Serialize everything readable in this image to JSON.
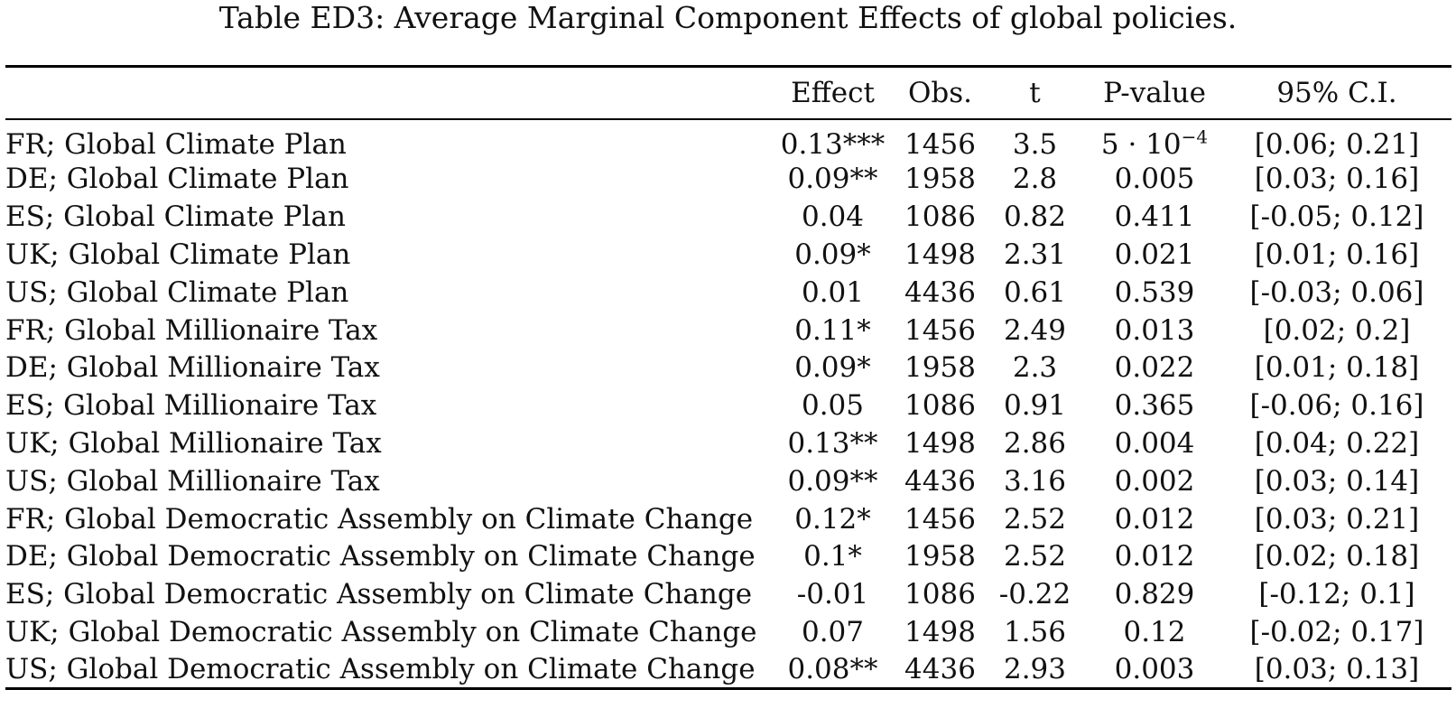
{
  "caption": "Table ED3: Average Marginal Component Effects of global policies.",
  "columns": {
    "label": "",
    "effect": "Effect",
    "obs": "Obs.",
    "t": "t",
    "pvalue": "P-value",
    "ci": "95% C.I."
  },
  "rows": [
    {
      "label": "FR; Global Climate Plan",
      "effect": "0.13***",
      "obs": "1456",
      "t": "3.5",
      "pvalue_base": "5 · 10",
      "pvalue_exp": "−4",
      "ci": "[0.06; 0.21]"
    },
    {
      "label": "DE; Global Climate Plan",
      "effect": "0.09**",
      "obs": "1958",
      "t": "2.8",
      "pvalue": "0.005",
      "ci": "[0.03; 0.16]"
    },
    {
      "label": "ES; Global Climate Plan",
      "effect": "0.04",
      "obs": "1086",
      "t": "0.82",
      "pvalue": "0.411",
      "ci": "[-0.05; 0.12]"
    },
    {
      "label": "UK; Global Climate Plan",
      "effect": "0.09*",
      "obs": "1498",
      "t": "2.31",
      "pvalue": "0.021",
      "ci": "[0.01; 0.16]"
    },
    {
      "label": "US; Global Climate Plan",
      "effect": "0.01",
      "obs": "4436",
      "t": "0.61",
      "pvalue": "0.539",
      "ci": "[-0.03; 0.06]"
    },
    {
      "label": "FR; Global Millionaire Tax",
      "effect": "0.11*",
      "obs": "1456",
      "t": "2.49",
      "pvalue": "0.013",
      "ci": "[0.02; 0.2]"
    },
    {
      "label": "DE; Global Millionaire Tax",
      "effect": "0.09*",
      "obs": "1958",
      "t": "2.3",
      "pvalue": "0.022",
      "ci": "[0.01; 0.18]"
    },
    {
      "label": "ES; Global Millionaire Tax",
      "effect": "0.05",
      "obs": "1086",
      "t": "0.91",
      "pvalue": "0.365",
      "ci": "[-0.06; 0.16]"
    },
    {
      "label": "UK; Global Millionaire Tax",
      "effect": "0.13**",
      "obs": "1498",
      "t": "2.86",
      "pvalue": "0.004",
      "ci": "[0.04; 0.22]"
    },
    {
      "label": "US; Global Millionaire Tax",
      "effect": "0.09**",
      "obs": "4436",
      "t": "3.16",
      "pvalue": "0.002",
      "ci": "[0.03; 0.14]"
    },
    {
      "label": "FR; Global Democratic Assembly on Climate Change",
      "effect": "0.12*",
      "obs": "1456",
      "t": "2.52",
      "pvalue": "0.012",
      "ci": "[0.03; 0.21]"
    },
    {
      "label": "DE; Global Democratic Assembly on Climate Change",
      "effect": "0.1*",
      "obs": "1958",
      "t": "2.52",
      "pvalue": "0.012",
      "ci": "[0.02; 0.18]"
    },
    {
      "label": "ES; Global Democratic Assembly on Climate Change",
      "effect": "-0.01",
      "obs": "1086",
      "t": "-0.22",
      "pvalue": "0.829",
      "ci": "[-0.12; 0.1]"
    },
    {
      "label": "UK; Global Democratic Assembly on Climate Change",
      "effect": "0.07",
      "obs": "1498",
      "t": "1.56",
      "pvalue": "0.12",
      "ci": "[-0.02; 0.17]"
    },
    {
      "label": "US; Global Democratic Assembly on Climate Change",
      "effect": "0.08**",
      "obs": "4436",
      "t": "2.93",
      "pvalue": "0.003",
      "ci": "[0.03; 0.13]"
    }
  ]
}
